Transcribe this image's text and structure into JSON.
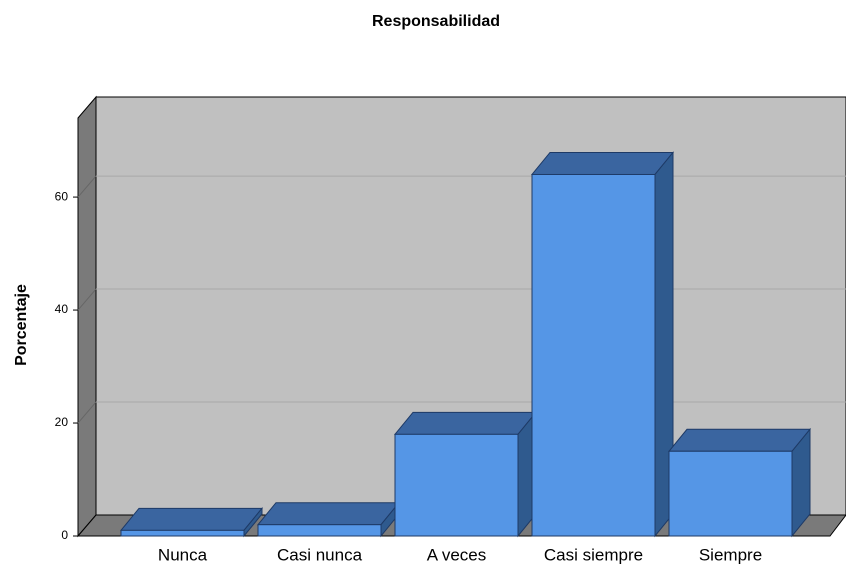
{
  "chart_data": {
    "type": "bar",
    "title": "Responsabilidad",
    "y_label": "Porcentaje",
    "categories": [
      "Nunca",
      "Casi nunca",
      "A veces",
      "Casi siempre",
      "Siempre"
    ],
    "values": [
      1,
      2,
      18,
      64,
      15
    ],
    "color": "#5596e6",
    "ylim": [
      0,
      74
    ],
    "yticks": [
      0,
      20,
      40,
      60
    ],
    "grid": true
  }
}
